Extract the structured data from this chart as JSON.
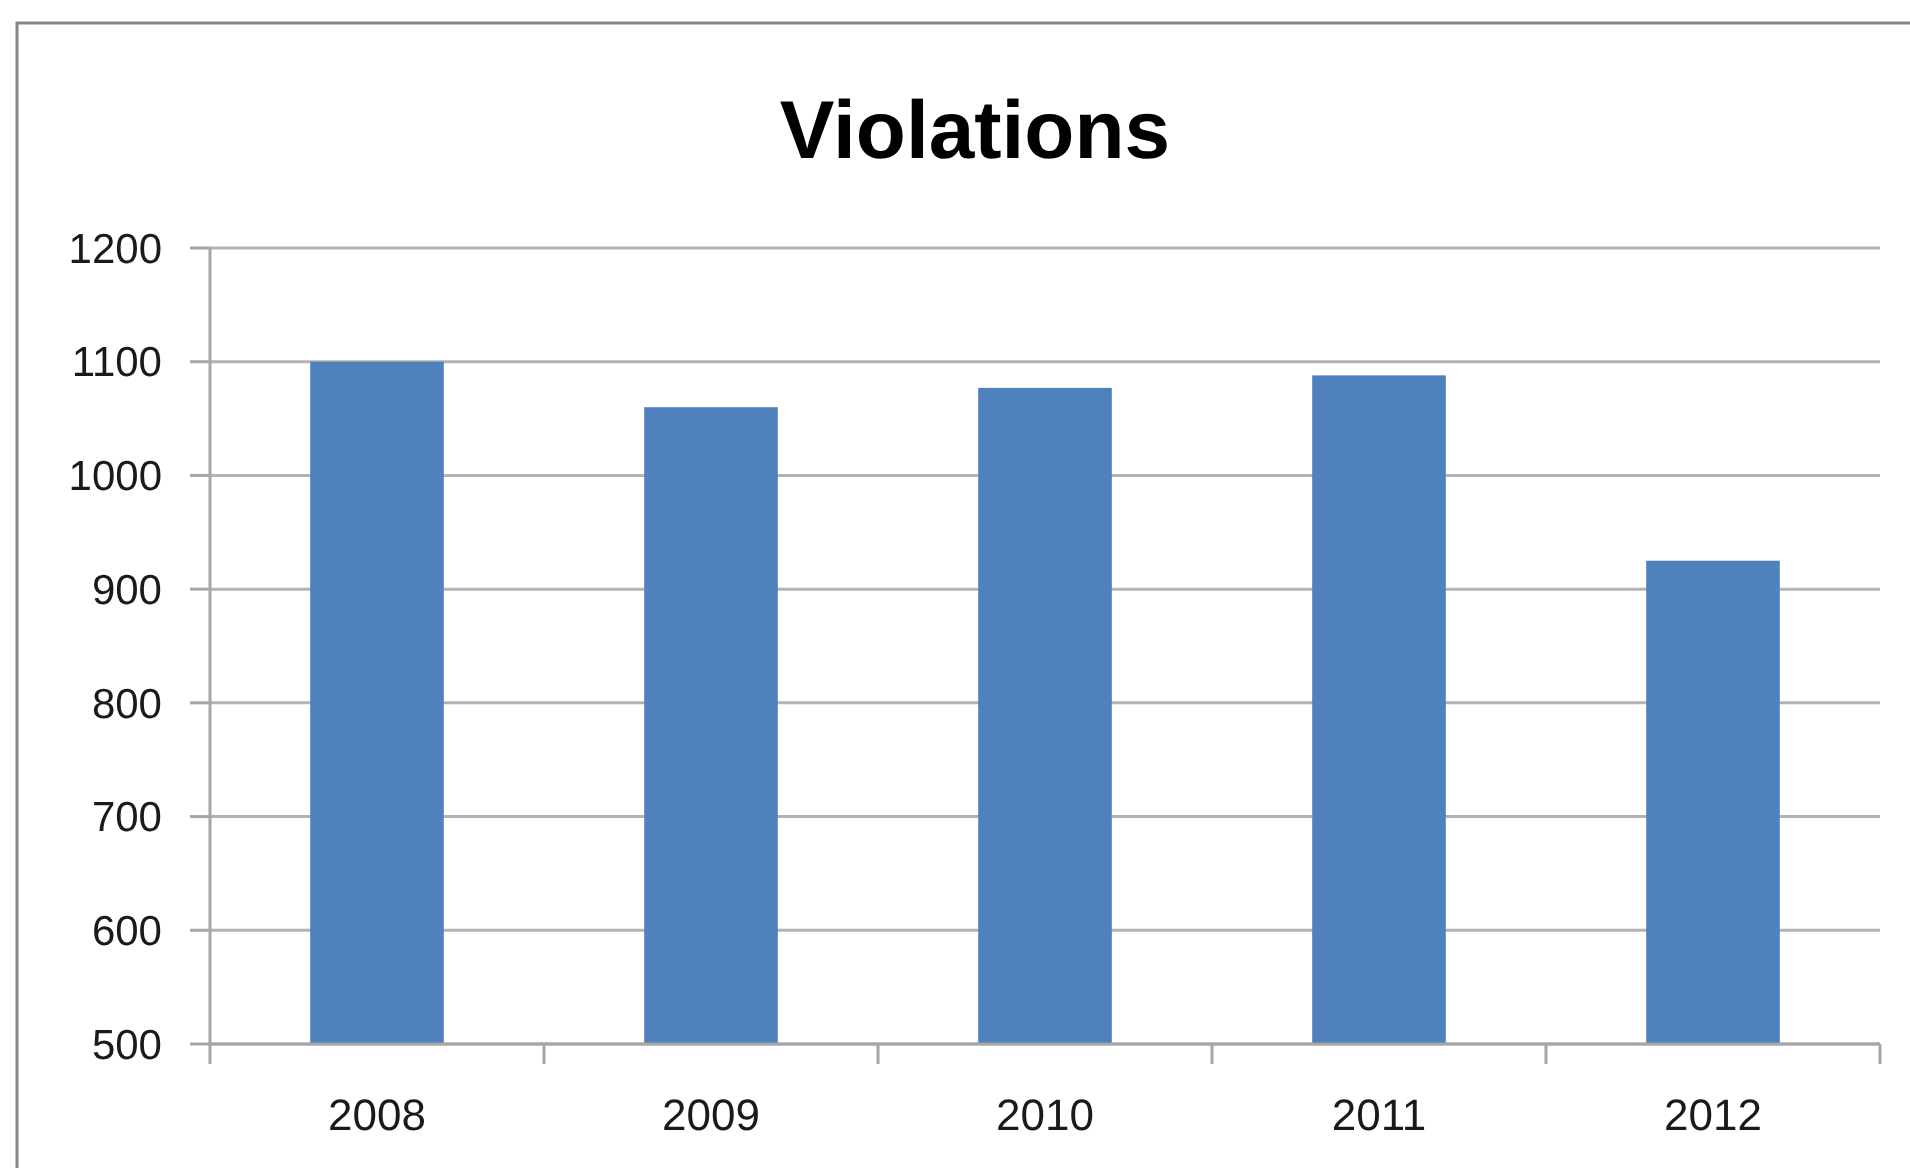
{
  "chart_data": {
    "type": "bar",
    "title": "Violations",
    "categories": [
      "2008",
      "2009",
      "2010",
      "2011",
      "2012"
    ],
    "values": [
      1100,
      1060,
      1077,
      1088,
      925
    ],
    "color": "#4f81bd",
    "ylim": [
      500,
      1200
    ],
    "yticks": [
      500,
      600,
      700,
      800,
      900,
      1000,
      1100,
      1200
    ],
    "grid": "y"
  }
}
